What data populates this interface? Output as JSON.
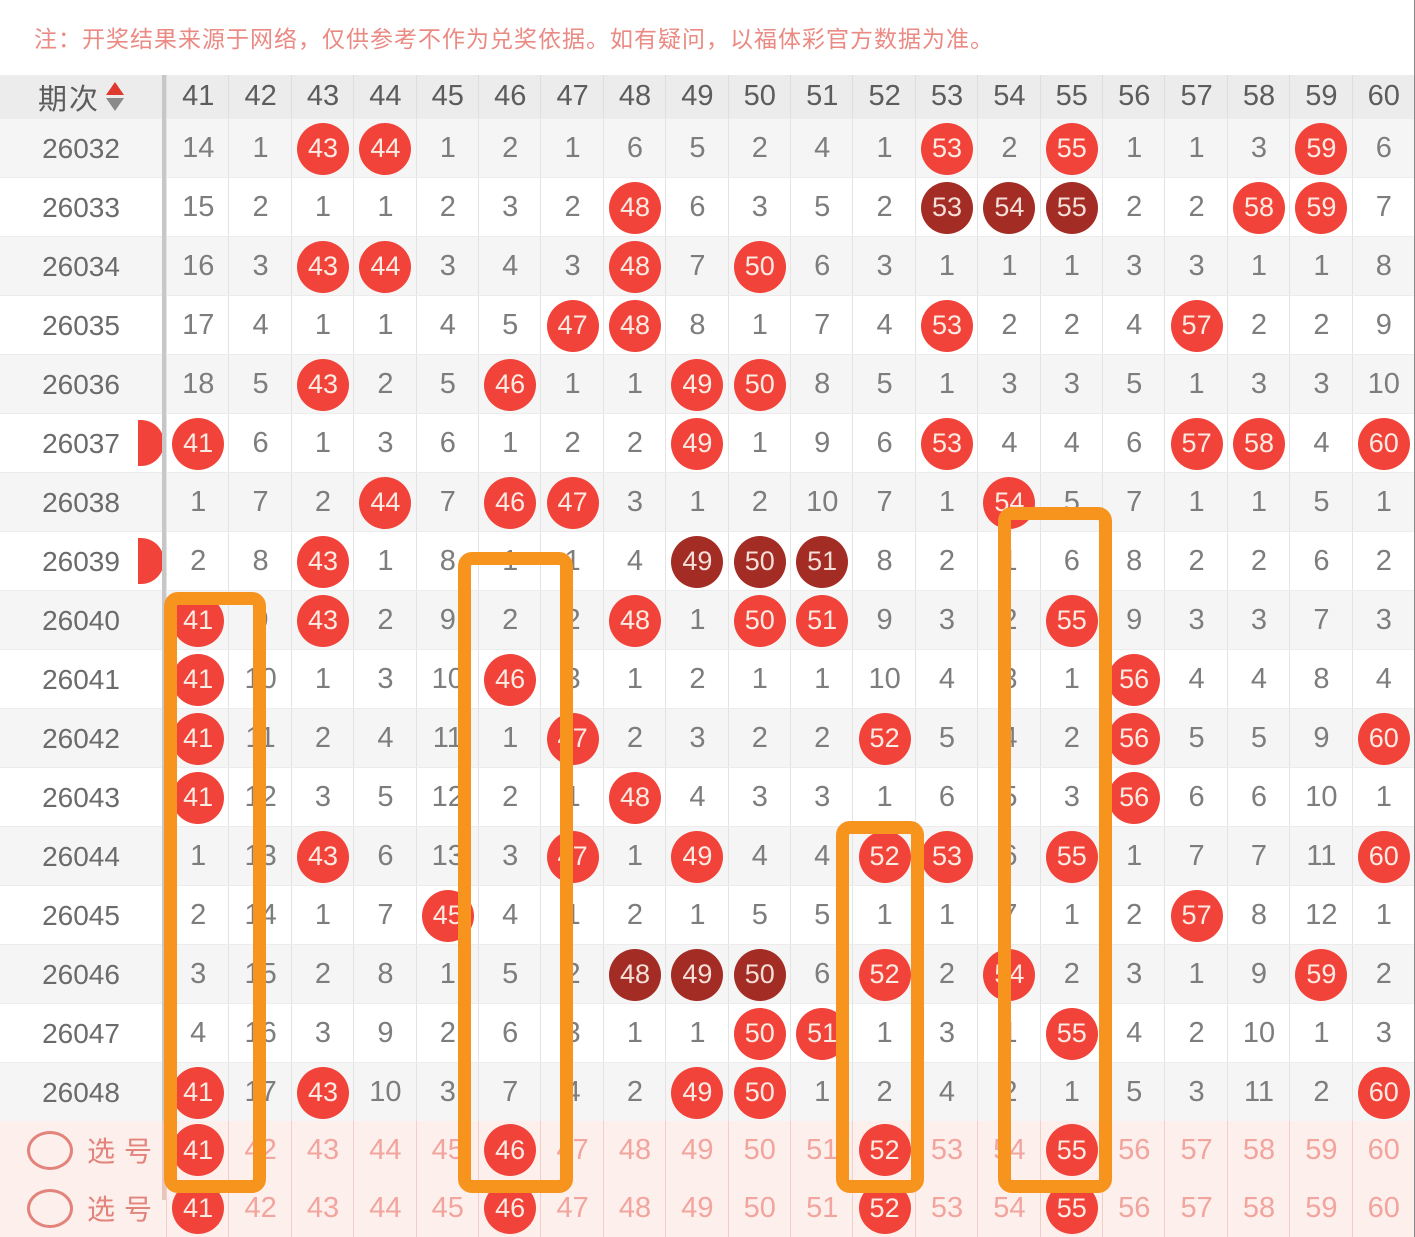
{
  "note": "注：开奖结果来源于网络，仅供参考不作为兑奖依据。如有疑问，以福体彩官方数据为准。",
  "header": {
    "period_label": "期次",
    "sort_icons": [
      "sort-ascending",
      "sort-descending"
    ],
    "columns": [
      "41",
      "42",
      "43",
      "44",
      "45",
      "46",
      "47",
      "48",
      "49",
      "50",
      "51",
      "52",
      "53",
      "54",
      "55",
      "56",
      "57",
      "58",
      "59",
      "60"
    ]
  },
  "table": {
    "rows": [
      {
        "period": "26032",
        "cells": [
          "14",
          "1",
          "b43",
          "b44",
          "1",
          "2",
          "1",
          "6",
          "5",
          "2",
          "4",
          "1",
          "b53",
          "2",
          "b55",
          "1",
          "1",
          "3",
          "b59",
          "6"
        ]
      },
      {
        "period": "26033",
        "cells": [
          "15",
          "2",
          "1",
          "1",
          "2",
          "3",
          "2",
          "b48",
          "6",
          "3",
          "5",
          "2",
          "d53",
          "d54",
          "d55",
          "2",
          "2",
          "b58",
          "b59",
          "7"
        ]
      },
      {
        "period": "26034",
        "cells": [
          "16",
          "3",
          "b43",
          "b44",
          "3",
          "4",
          "3",
          "b48",
          "7",
          "b50",
          "6",
          "3",
          "1",
          "1",
          "1",
          "3",
          "3",
          "1",
          "1",
          "8"
        ]
      },
      {
        "period": "26035",
        "cells": [
          "17",
          "4",
          "1",
          "1",
          "4",
          "5",
          "b47",
          "b48",
          "8",
          "1",
          "7",
          "4",
          "b53",
          "2",
          "2",
          "4",
          "b57",
          "2",
          "2",
          "9"
        ]
      },
      {
        "period": "26036",
        "cells": [
          "18",
          "5",
          "b43",
          "2",
          "5",
          "b46",
          "1",
          "1",
          "b49",
          "b50",
          "8",
          "5",
          "1",
          "3",
          "3",
          "5",
          "1",
          "3",
          "3",
          "10"
        ]
      },
      {
        "period": "26037",
        "cells": [
          "b41",
          "6",
          "1",
          "3",
          "6",
          "1",
          "2",
          "2",
          "b49",
          "1",
          "9",
          "6",
          "b53",
          "4",
          "4",
          "6",
          "b57",
          "b58",
          "4",
          "b60"
        ]
      },
      {
        "period": "26038",
        "cells": [
          "1",
          "7",
          "2",
          "b44",
          "7",
          "b46",
          "b47",
          "3",
          "1",
          "2",
          "10",
          "7",
          "1",
          "b54",
          "5",
          "7",
          "1",
          "1",
          "5",
          "1"
        ]
      },
      {
        "period": "26039",
        "cells": [
          "2",
          "8",
          "b43",
          "1",
          "8",
          "1",
          "1",
          "4",
          "d49",
          "d50",
          "d51",
          "8",
          "2",
          "1",
          "6",
          "8",
          "2",
          "2",
          "6",
          "2"
        ]
      },
      {
        "period": "26040",
        "cells": [
          "b41",
          "9",
          "b43",
          "2",
          "9",
          "2",
          "2",
          "b48",
          "1",
          "b50",
          "b51",
          "9",
          "3",
          "2",
          "b55",
          "9",
          "3",
          "3",
          "7",
          "3"
        ]
      },
      {
        "period": "26041",
        "cells": [
          "b41",
          "10",
          "1",
          "3",
          "10",
          "b46",
          "3",
          "1",
          "2",
          "1",
          "1",
          "10",
          "4",
          "3",
          "1",
          "b56",
          "4",
          "4",
          "8",
          "4"
        ]
      },
      {
        "period": "26042",
        "cells": [
          "b41",
          "11",
          "2",
          "4",
          "11",
          "1",
          "b47",
          "2",
          "3",
          "2",
          "2",
          "b52",
          "5",
          "4",
          "2",
          "b56",
          "5",
          "5",
          "9",
          "b60"
        ]
      },
      {
        "period": "26043",
        "cells": [
          "b41",
          "12",
          "3",
          "5",
          "12",
          "2",
          "1",
          "b48",
          "4",
          "3",
          "3",
          "1",
          "6",
          "5",
          "3",
          "b56",
          "6",
          "6",
          "10",
          "1"
        ]
      },
      {
        "period": "26044",
        "cells": [
          "1",
          "13",
          "b43",
          "6",
          "13",
          "3",
          "b47",
          "1",
          "b49",
          "4",
          "4",
          "b52",
          "b53",
          "6",
          "b55",
          "1",
          "7",
          "7",
          "11",
          "b60"
        ]
      },
      {
        "period": "26045",
        "cells": [
          "2",
          "14",
          "1",
          "7",
          "b45",
          "4",
          "1",
          "2",
          "1",
          "5",
          "5",
          "1",
          "1",
          "7",
          "1",
          "2",
          "b57",
          "8",
          "12",
          "1"
        ]
      },
      {
        "period": "26046",
        "cells": [
          "3",
          "15",
          "2",
          "8",
          "1",
          "5",
          "2",
          "d48",
          "d49",
          "d50",
          "6",
          "b52",
          "2",
          "b54",
          "2",
          "3",
          "1",
          "9",
          "b59",
          "2"
        ]
      },
      {
        "period": "26047",
        "cells": [
          "4",
          "16",
          "3",
          "9",
          "2",
          "6",
          "3",
          "1",
          "1",
          "b50",
          "b51",
          "1",
          "3",
          "1",
          "b55",
          "4",
          "2",
          "10",
          "1",
          "3"
        ]
      },
      {
        "period": "26048",
        "cells": [
          "b41",
          "17",
          "b43",
          "10",
          "3",
          "7",
          "4",
          "2",
          "b49",
          "b50",
          "1",
          "2",
          "4",
          "2",
          "1",
          "5",
          "3",
          "11",
          "2",
          "b60"
        ]
      }
    ]
  },
  "edge_partial_balls": {
    "periods": [
      "26037",
      "26039"
    ]
  },
  "highlights": {
    "color": "#f7941e",
    "boxes": [
      {
        "column": "41",
        "from_period": "26040"
      },
      {
        "column": "46",
        "from_period": "26039"
      },
      {
        "column": "52",
        "from_period": "26044"
      },
      {
        "column": "55",
        "from_period": "26039"
      }
    ]
  },
  "selection_rows": [
    {
      "label": "选号",
      "numbers": [
        "41",
        "42",
        "43",
        "44",
        "45",
        "46",
        "47",
        "48",
        "49",
        "50",
        "51",
        "52",
        "53",
        "54",
        "55",
        "56",
        "57",
        "58",
        "59",
        "60"
      ],
      "selected": [
        "41",
        "46",
        "52",
        "55"
      ]
    },
    {
      "label": "选号",
      "numbers": [
        "41",
        "42",
        "43",
        "44",
        "45",
        "46",
        "47",
        "48",
        "49",
        "50",
        "51",
        "52",
        "53",
        "54",
        "55",
        "56",
        "57",
        "58",
        "59",
        "60"
      ],
      "selected": [
        "41",
        "46",
        "52",
        "55"
      ]
    }
  ],
  "colors": {
    "ball_red": "#f2433a",
    "ball_dark": "#a32c24",
    "highlight_orange": "#f7941e",
    "pink_bg": "#fdefeb",
    "pink_number": "#f2a49e",
    "pink_label": "#e2837c",
    "note_text": "#ea8a83",
    "header_bg": "#ececec"
  }
}
